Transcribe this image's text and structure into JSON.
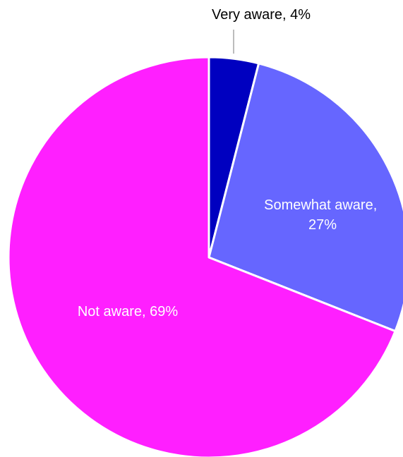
{
  "chart_data": {
    "type": "pie",
    "title": "",
    "slices": [
      {
        "label": "Very aware",
        "value": 4,
        "display": "Very aware, 4%",
        "color": "#0000c0",
        "label_color": "#000000",
        "label_lines": [
          "Very aware, 4%"
        ]
      },
      {
        "label": "Somewhat aware",
        "value": 27,
        "display": "Somewhat aware, 27%",
        "color": "#6666ff",
        "label_color": "#ffffff",
        "label_lines": [
          "Somewhat aware,",
          "27%"
        ]
      },
      {
        "label": "Not aware",
        "value": 69,
        "display": "Not aware, 69%",
        "color": "#ff1fff",
        "label_color": "#ffffff",
        "label_lines": [
          "Not aware, 69%"
        ]
      }
    ],
    "start_angle": "12 o'clock",
    "direction": "clockwise",
    "legend": "none",
    "slice_border_color": "#ffffff",
    "leader_line_color": "#a6a6a6"
  }
}
